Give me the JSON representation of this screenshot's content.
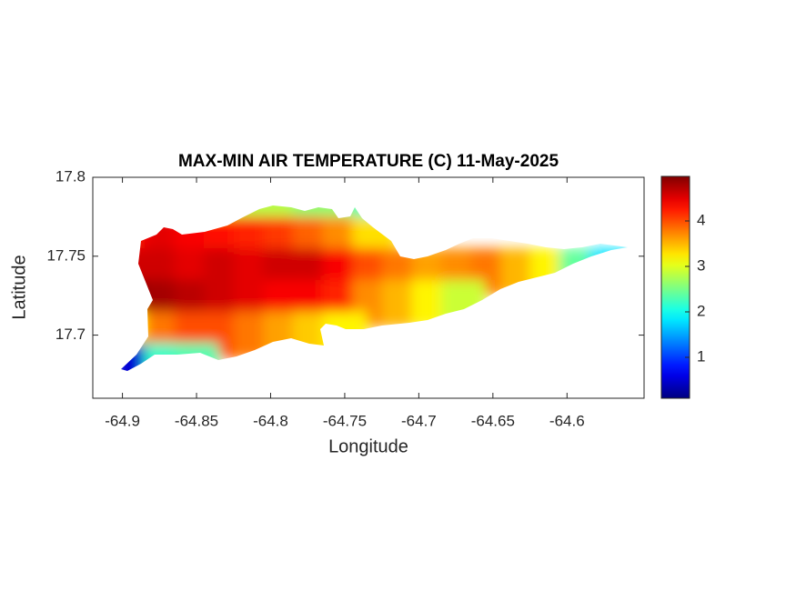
{
  "chart_data": {
    "type": "heatmap",
    "title": "MAX-MIN AIR TEMPERATURE (C) 11-May-2025",
    "x_label": "Longitude",
    "y_label": "Latitude",
    "xlim": [
      -64.92,
      -64.548
    ],
    "ylim": [
      17.66,
      17.8
    ],
    "xticks": [
      -64.9,
      -64.85,
      -64.8,
      -64.75,
      -64.7,
      -64.65,
      -64.6
    ],
    "yticks": [
      17.7,
      17.75,
      17.8
    ],
    "clim": [
      0.1,
      4.98
    ],
    "cticks": [
      1,
      2,
      3,
      4
    ],
    "colormap": "jet",
    "x": [
      -64.89,
      -64.87,
      -64.85,
      -64.83,
      -64.81,
      -64.79,
      -64.77,
      -64.75,
      -64.73,
      -64.71,
      -64.69,
      -64.67,
      -64.65,
      -64.63,
      -64.61,
      -64.59,
      -64.57
    ],
    "y": [
      17.78,
      17.76,
      17.74,
      17.72,
      17.7,
      17.68
    ],
    "z": [
      [
        null,
        null,
        null,
        3.0,
        2.8,
        2.8,
        2.6,
        2.6,
        2.2,
        null,
        null,
        null,
        null,
        null,
        null,
        null,
        null
      ],
      [
        4.3,
        4.5,
        4.4,
        4.3,
        4.2,
        4.1,
        3.9,
        3.7,
        3.3,
        null,
        null,
        null,
        null,
        null,
        null,
        null,
        null
      ],
      [
        4.6,
        4.6,
        4.5,
        4.6,
        4.5,
        4.6,
        4.6,
        4.4,
        4.0,
        3.8,
        3.6,
        3.7,
        3.8,
        3.5,
        3.2,
        2.4,
        1.8
      ],
      [
        4.9,
        4.8,
        4.7,
        4.6,
        4.5,
        4.4,
        4.4,
        4.2,
        3.7,
        3.5,
        3.2,
        2.9,
        null,
        null,
        null,
        null,
        null
      ],
      [
        3.2,
        3.8,
        4.0,
        4.0,
        3.8,
        3.6,
        3.4,
        3.2,
        null,
        null,
        null,
        null,
        null,
        null,
        null,
        null,
        null
      ],
      [
        0.5,
        2.2,
        2.3,
        null,
        null,
        null,
        null,
        null,
        null,
        null,
        null,
        null,
        null,
        null,
        null,
        null,
        null
      ]
    ]
  }
}
